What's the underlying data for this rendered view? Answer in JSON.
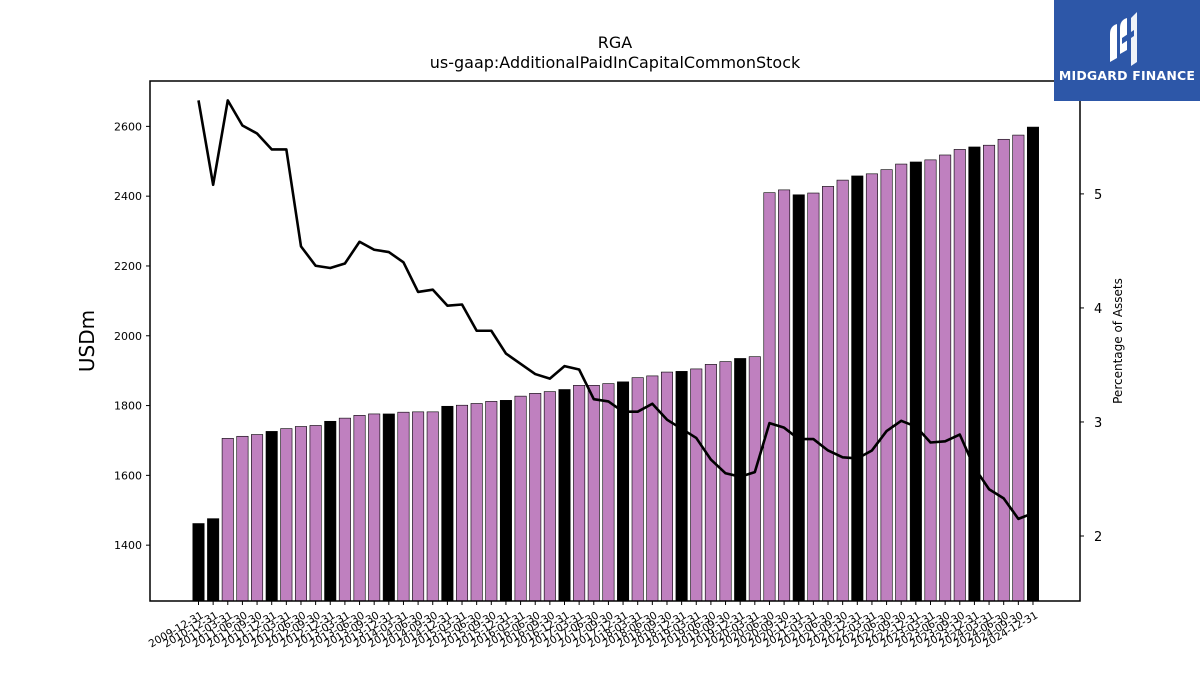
{
  "chart_data": {
    "type": "bar+line",
    "title": "RGA",
    "subtitle": "us-gaap:AdditionalPaidInCapitalCommonStock",
    "ylabel": "USDm",
    "y2label": "Percentage of Assets",
    "ylim": [
      1240,
      2730
    ],
    "y2lim": [
      1.43,
      5.99
    ],
    "yticks": [
      1400,
      1600,
      1800,
      2000,
      2200,
      2400,
      2600
    ],
    "y2ticks": [
      2,
      3,
      4,
      5
    ],
    "grid": false,
    "categories": [
      "2009-12-31",
      "2010-12-31",
      "2011-03-31",
      "2011-06-30",
      "2011-09-30",
      "2011-12-31",
      "2012-03-31",
      "2012-06-30",
      "2012-09-30",
      "2012-12-31",
      "2013-03-31",
      "2013-06-30",
      "2013-09-30",
      "2013-12-31",
      "2014-03-31",
      "2014-06-30",
      "2014-09-30",
      "2014-12-31",
      "2015-03-31",
      "2015-06-30",
      "2015-09-30",
      "2015-12-31",
      "2016-03-31",
      "2016-06-30",
      "2016-09-30",
      "2016-12-31",
      "2017-03-31",
      "2017-06-30",
      "2017-09-30",
      "2017-12-31",
      "2018-03-31",
      "2018-06-30",
      "2018-09-30",
      "2018-12-31",
      "2019-03-31",
      "2019-06-30",
      "2019-09-30",
      "2019-12-31",
      "2020-03-31",
      "2020-06-30",
      "2020-09-30",
      "2020-12-31",
      "2021-03-31",
      "2021-06-30",
      "2021-09-30",
      "2021-12-31",
      "2022-03-31",
      "2022-06-30",
      "2022-09-30",
      "2022-12-31",
      "2023-03-31",
      "2023-06-30",
      "2023-09-30",
      "2023-12-31",
      "2024-03-31",
      "2024-06-30",
      "2024-09-30",
      "2024-12-31"
    ],
    "series": [
      {
        "kind": "bar",
        "values": [
          1462,
          1476,
          1706,
          1712,
          1717,
          1726,
          1734,
          1740,
          1743,
          1755,
          1764,
          1772,
          1776,
          1776,
          1781,
          1782,
          1782,
          1798,
          1801,
          1806,
          1812,
          1815,
          1827,
          1835,
          1840,
          1846,
          1858,
          1858,
          1863,
          1868,
          1880,
          1885,
          1896,
          1898,
          1905,
          1918,
          1926,
          1935,
          1940,
          2410,
          2418,
          2404,
          2409,
          2428,
          2446,
          2458,
          2464,
          2476,
          2492,
          2498,
          2504,
          2518,
          2534,
          2541,
          2546,
          2563,
          2575,
          2598
        ],
        "highlight_indices": [
          0,
          1,
          5,
          9,
          13,
          17,
          21,
          25,
          29,
          33,
          37,
          41,
          45,
          49,
          53,
          57
        ],
        "colors": {
          "regular": "#bf80bf",
          "highlight": "#000000",
          "edge": "#000000"
        }
      },
      {
        "kind": "line",
        "axis": "right",
        "color": "#000000",
        "values": [
          5.82,
          5.08,
          5.82,
          5.6,
          5.53,
          5.39,
          5.39,
          4.54,
          4.37,
          4.35,
          4.39,
          4.58,
          4.51,
          4.49,
          4.4,
          4.14,
          4.16,
          4.02,
          4.03,
          3.8,
          3.8,
          3.6,
          3.51,
          3.42,
          3.38,
          3.49,
          3.46,
          3.2,
          3.18,
          3.09,
          3.09,
          3.16,
          3.02,
          2.94,
          2.86,
          2.67,
          2.55,
          2.52,
          2.56,
          2.99,
          2.95,
          2.85,
          2.85,
          2.75,
          2.69,
          2.68,
          2.75,
          2.92,
          3.01,
          2.96,
          2.82,
          2.83,
          2.89,
          2.6,
          2.41,
          2.33,
          2.15,
          2.2
        ]
      }
    ]
  },
  "brand": {
    "name": "MIDGARD FINANCE",
    "color": "#2d57a8"
  }
}
